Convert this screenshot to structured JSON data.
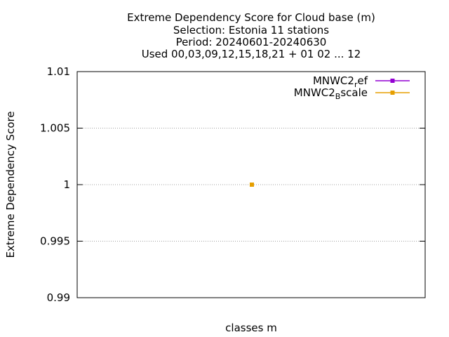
{
  "chart_data": {
    "type": "line",
    "title_lines": [
      "Extreme Dependency Score  for Cloud base (m)",
      "Selection: Estonia     11 stations",
      "Period: 20240601-20240630",
      "Used 00,03,09,12,15,18,21 + 01 02 ... 12"
    ],
    "xlabel": "classes m",
    "ylabel": "Extreme Dependency Score",
    "ylim": [
      0.99,
      1.01
    ],
    "yticks": [
      1.01,
      1.005,
      1,
      0.995,
      0.99
    ],
    "ytick_labels": [
      "1.01",
      "1.005",
      "1",
      "0.995",
      "0.99"
    ],
    "grid": true,
    "legend_position": "top-right",
    "series": [
      {
        "name": "MNWC2_ref",
        "label_main": "MNWC2",
        "label_sub": "r",
        "label_rest": "ef",
        "color": "#9400d3",
        "values": [
          1
        ]
      },
      {
        "name": "MNWC2_Bscale",
        "label_main": "MNWC2",
        "label_sub": "B",
        "label_rest": "scale",
        "color": "#e69f00",
        "values": [
          1
        ]
      }
    ]
  }
}
